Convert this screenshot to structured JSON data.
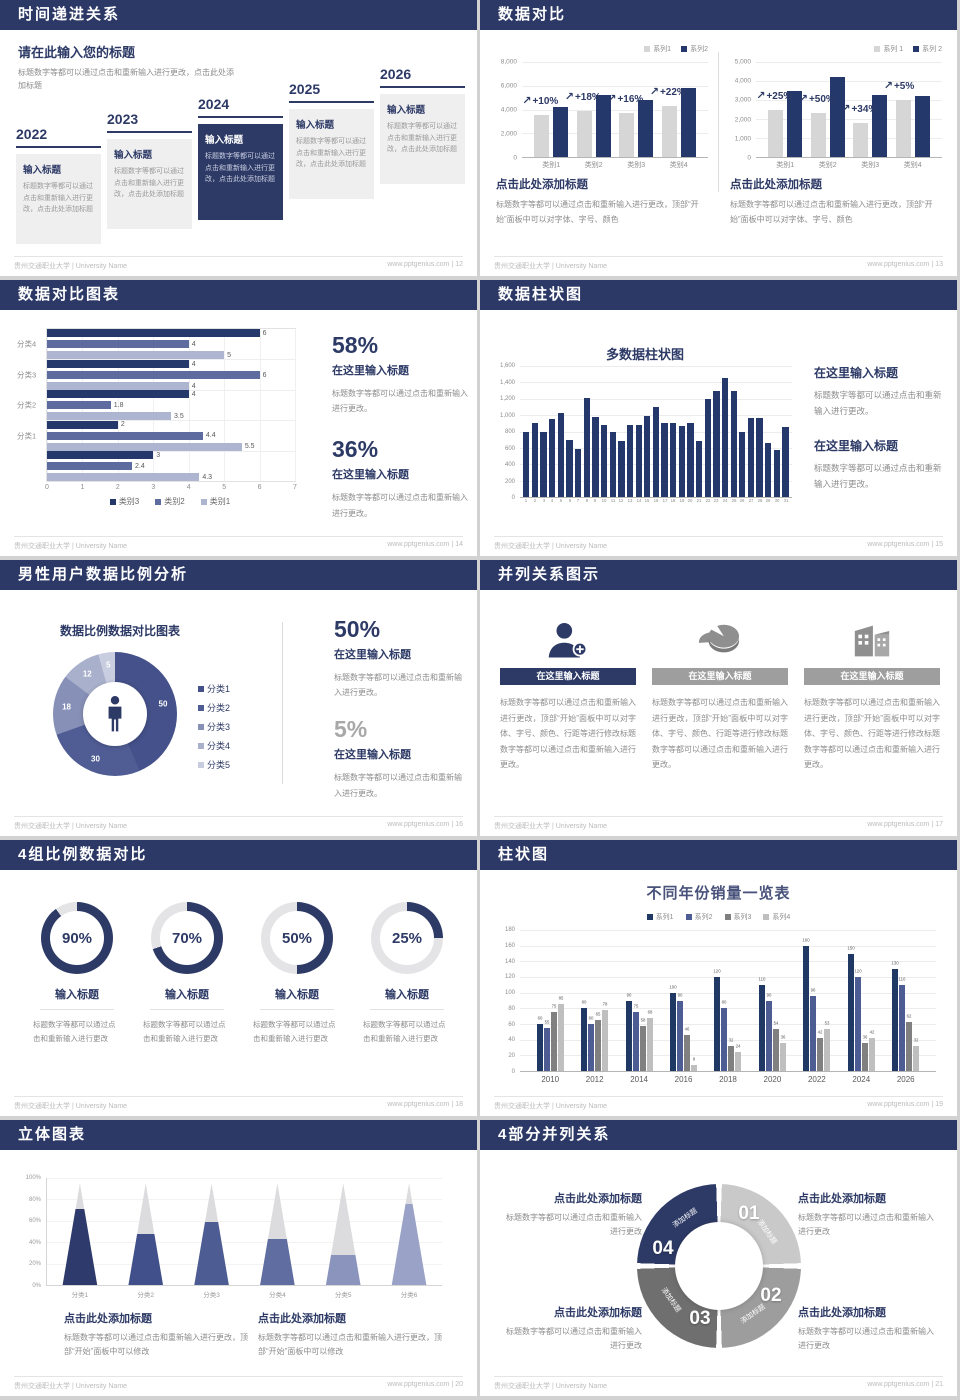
{
  "footer": {
    "left": "贵州交通职业大学 | University Name",
    "site": "www.pptgenius.com",
    "sep": " | "
  },
  "common": {
    "input_title": "输入标题",
    "here_title": "在这里输入标题",
    "click_add_title": "点击此处添加标题",
    "body_change": "标题数字等都可以通过点击和重新输入进行更改。",
    "body_change_short": "标题数字等都可以通过点击和重新输入进行更改",
    "body_click": "标题数字等都可以通过点击和重新输入进行更改，点击此处添加标题",
    "body_panel": "标题数字等都可以通过点击和重新输入进行更改，顶部“开始”面板中可以对字体、字号、颜色",
    "body_modify": "标题数字等都可以通过点击和重新输入进行更改，顶部“开始”面板中可以修改",
    "body_long": "标题数字等都可以通过点击和重新输入进行更改，顶部“开始”面板中可以对字体、字号、颜色、行距等进行修改标题数字等都可以通过点击和重新输入进行更改。"
  },
  "slides": {
    "s1": {
      "title": "时间递进关系",
      "page": "12",
      "intro_title": "请在此输入您的标题",
      "years": [
        "2022",
        "2023",
        "2024",
        "2025",
        "2026"
      ]
    },
    "s2": {
      "title": "数据对比",
      "page": "13"
    },
    "s3": {
      "title": "数据对比图表",
      "page": "14",
      "pct1": "58%",
      "pct2": "36%"
    },
    "s4": {
      "title": "数据柱状图",
      "page": "15"
    },
    "s5": {
      "title": "男性用户数据比例分析",
      "page": "16",
      "pct1": "50%",
      "pct2": "5%"
    },
    "s6": {
      "title": "并列关系图示",
      "page": "17"
    },
    "s7": {
      "title": "4组比例数据对比",
      "page": "18"
    },
    "s8": {
      "title": "柱状图",
      "page": "19"
    },
    "s9": {
      "title": "立体图表",
      "page": "20"
    },
    "s10": {
      "title": "4部分并列关系",
      "page": "21",
      "numbers": [
        "01",
        "02",
        "03",
        "04"
      ],
      "seg_label": "添加标题"
    }
  },
  "chart_data": [
    {
      "name": "数据对比-左",
      "type": "bar",
      "categories": [
        "类别1",
        "类别2",
        "类别3",
        "类别4"
      ],
      "series": [
        {
          "name": "系列1",
          "color": "#d6d6d6",
          "values": [
            3500,
            3900,
            3700,
            4300
          ]
        },
        {
          "name": "系列2",
          "color": "#24386b",
          "values": [
            4200,
            5200,
            4800,
            5800
          ]
        }
      ],
      "annotations": [
        "+10%",
        "+18%",
        "+16%",
        "+22%"
      ],
      "y_ticks": [
        "8,000",
        "6,000",
        "4,000",
        "2,000",
        "0"
      ],
      "ymax": 8000,
      "legend_position": "top-right"
    },
    {
      "name": "数据对比-右",
      "type": "bar",
      "categories": [
        "类别1",
        "类别2",
        "类别3",
        "类别4"
      ],
      "series": [
        {
          "name": "系列 1",
          "color": "#d6d6d6",
          "values": [
            2500,
            2300,
            1800,
            3000
          ]
        },
        {
          "name": "系列 2",
          "color": "#24386b",
          "values": [
            3500,
            4200,
            3250,
            3200
          ]
        }
      ],
      "annotations": [
        "+25%",
        "+50%",
        "+34%",
        "+5%"
      ],
      "y_ticks": [
        "5,000",
        "4,000",
        "3,000",
        "2,000",
        "1,000",
        "0"
      ],
      "ymax": 5000,
      "legend_position": "top-right"
    },
    {
      "name": "数据对比条形图",
      "type": "bar",
      "subtype": "horizontal",
      "series_names": [
        "类别3",
        "类别2",
        "类别1"
      ],
      "colors": [
        "#24386b",
        "#5d6b9e",
        "#aeb5d0"
      ],
      "groups": [
        {
          "label": "分类4",
          "values": [
            6,
            4,
            5
          ]
        },
        {
          "label": "分类3",
          "values": [
            4,
            6,
            4
          ]
        },
        {
          "label": "分类2",
          "values": [
            4,
            1.8,
            3.5
          ]
        },
        {
          "label": "分类1",
          "values": [
            2,
            4.4,
            5.5
          ]
        },
        {
          "label": "",
          "values": [
            3,
            2.4,
            4.3
          ]
        }
      ],
      "x_ticks": [
        "0",
        "1",
        "2",
        "3",
        "4",
        "5",
        "6",
        "7"
      ],
      "xmax": 7
    },
    {
      "name": "多数据柱状图",
      "type": "bar",
      "title": "多数据柱状图",
      "categories": [
        "1",
        "2",
        "3",
        "4",
        "5",
        "6",
        "7",
        "8",
        "9",
        "10",
        "11",
        "12",
        "13",
        "14",
        "15",
        "16",
        "17",
        "18",
        "19",
        "20",
        "21",
        "22",
        "23",
        "24",
        "25",
        "26",
        "27",
        "28",
        "29",
        "30",
        "31"
      ],
      "series": [
        {
          "name": "数据",
          "color": "#24386b",
          "values": [
            800,
            900,
            800,
            950,
            1030,
            700,
            590,
            1210,
            980,
            880,
            790,
            690,
            880,
            880,
            990,
            1100,
            900,
            900,
            870,
            900,
            690,
            1200,
            1300,
            1450,
            1300,
            800,
            960,
            970,
            660,
            580,
            850
          ]
        }
      ],
      "y_ticks": [
        "1,600",
        "1,400",
        "1,200",
        "1,000",
        "800",
        "600",
        "400",
        "200",
        "0"
      ],
      "ymax": 1600
    },
    {
      "name": "数据比例数据对比图表",
      "type": "pie",
      "title": "数据比例数据对比图表",
      "donut": true,
      "labels": [
        "分类1",
        "分类2",
        "分类3",
        "分类4",
        "分类5"
      ],
      "values": [
        50,
        30,
        18,
        12,
        5
      ],
      "colors": [
        "#44518a",
        "#505d95",
        "#8790b7",
        "#a9b0cc",
        "#c9cde0"
      ]
    },
    {
      "name": "4组比例环形图",
      "type": "pie",
      "subtype": "progress-rings",
      "color": "#2d3a66",
      "track": "#e4e4e6",
      "items": [
        {
          "label": "90%",
          "value": 90
        },
        {
          "label": "70%",
          "value": 70
        },
        {
          "label": "50%",
          "value": 50
        },
        {
          "label": "25%",
          "value": 25
        }
      ]
    },
    {
      "name": "不同年份销量一览表",
      "type": "bar",
      "title": "不同年份销量一览表",
      "value_labels": true,
      "categories": [
        "2010",
        "2012",
        "2014",
        "2016",
        "2018",
        "2020",
        "2022",
        "2024",
        "2026"
      ],
      "series": [
        {
          "name": "系列1",
          "color": "#1f3864",
          "values": [
            60,
            80,
            90,
            100,
            120,
            110,
            160,
            150,
            130
          ]
        },
        {
          "name": "系列2",
          "color": "#4d5c92",
          "values": [
            55,
            60,
            75,
            90,
            80,
            90,
            96,
            120,
            110
          ]
        },
        {
          "name": "系列3",
          "color": "#808080",
          "values": [
            75,
            65,
            58,
            46,
            32,
            54,
            42,
            36,
            62
          ]
        },
        {
          "name": "系列4",
          "color": "#bfbfbf",
          "values": [
            85,
            78,
            68,
            8,
            24,
            36,
            53,
            42,
            32
          ]
        }
      ],
      "y_ticks": [
        "180",
        "160",
        "140",
        "120",
        "100",
        "80",
        "60",
        "40",
        "20",
        "0"
      ],
      "ymax": 180
    },
    {
      "name": "立体圆锥图",
      "type": "bar",
      "subtype": "pyramid",
      "categories": [
        "分类1",
        "分类2",
        "分类3",
        "分类4",
        "分类5",
        "分类6"
      ],
      "values": [
        75,
        50,
        62,
        45,
        30,
        80
      ],
      "fill_colors": [
        "#2d3a6b",
        "#41508a",
        "#4d5c92",
        "#5f6da0",
        "#8a94bd",
        "#9aa3c7"
      ],
      "cone_color": "#dcdcde",
      "y_ticks": [
        "100%",
        "80%",
        "60%",
        "40%",
        "20%",
        "0%"
      ],
      "ymax": 100
    },
    {
      "name": "4部分环形图示",
      "type": "pie",
      "subtype": "segmented-ring",
      "segments": [
        {
          "number": "01",
          "label": "添加标题",
          "color": "#c9c9c9"
        },
        {
          "number": "02",
          "label": "添加标题",
          "color": "#9d9d9d"
        },
        {
          "number": "03",
          "label": "添加标题",
          "color": "#6f6f6f"
        },
        {
          "number": "04",
          "label": "添加标题",
          "color": "#2d3a66"
        }
      ]
    }
  ]
}
